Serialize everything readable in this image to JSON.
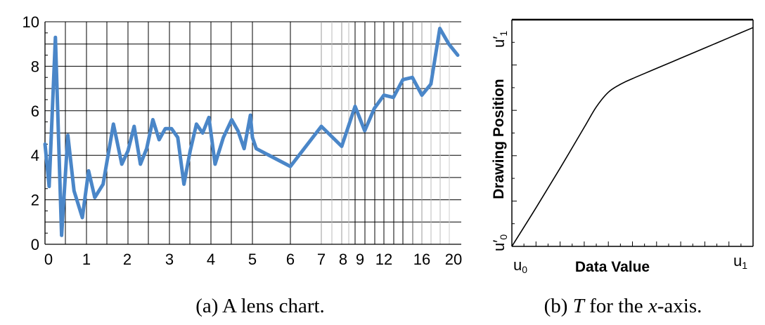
{
  "chart_data": [
    {
      "type": "line",
      "caption": "(a)  A lens chart.",
      "x_ticks": [
        "0",
        "1",
        "2",
        "3",
        "4",
        "5",
        "6",
        "7",
        "8",
        "9",
        "12",
        "16",
        "20"
      ],
      "y_ticks": [
        "0",
        "2",
        "4",
        "6",
        "8",
        "10"
      ],
      "ylim": [
        0,
        10
      ],
      "grid": true,
      "series_color": "#4a86c8",
      "series": [
        {
          "x": [
            0,
            0.1,
            0.25,
            0.4,
            0.55,
            0.7,
            0.9,
            1.05,
            1.2,
            1.4,
            1.65,
            1.85,
            2.0,
            2.15,
            2.3,
            2.45,
            2.6,
            2.75,
            2.9,
            3.05,
            3.2,
            3.35,
            3.5,
            3.65,
            3.8,
            3.95,
            4.1,
            4.3,
            4.5,
            4.65,
            4.8,
            4.95,
            5.0,
            5.1,
            6.0,
            7.0,
            8.0,
            9.0,
            10.0,
            11.0,
            12.0,
            13.0,
            14.0,
            15.0,
            16.0,
            17.0,
            18.0,
            19.0,
            20.0
          ],
          "y": [
            4.5,
            2.6,
            9.3,
            0.4,
            4.9,
            2.4,
            1.2,
            3.3,
            2.1,
            2.7,
            5.4,
            3.6,
            4.2,
            5.3,
            3.6,
            4.3,
            5.6,
            4.7,
            5.2,
            5.2,
            4.8,
            2.7,
            4.2,
            5.4,
            5.0,
            5.7,
            3.6,
            4.8,
            5.6,
            5.1,
            4.3,
            5.8,
            4.8,
            4.3,
            3.5,
            5.3,
            4.4,
            6.2,
            5.1,
            6.1,
            6.7,
            6.6,
            7.4,
            7.5,
            6.7,
            7.2,
            9.7,
            9.0,
            8.5
          ]
        }
      ]
    },
    {
      "type": "line",
      "caption_prefix": "(b)",
      "caption_T": "T",
      "caption_mid": "for the",
      "caption_x": "x",
      "caption_suffix": "-axis.",
      "xlabel": "Data Value",
      "ylabel": "Drawing Position",
      "x_start_label": "u",
      "x_start_sub": "0",
      "x_end_label": "u",
      "x_end_sub": "1",
      "y_start_label": "u′",
      "y_start_sub": "0",
      "y_end_label": "u′",
      "y_end_sub": "1",
      "curve": {
        "x": [
          0,
          0.1,
          0.2,
          0.3,
          0.35,
          0.4,
          0.45,
          0.5,
          0.6,
          0.7,
          0.8,
          0.9,
          1.0
        ],
        "y": [
          0,
          0.17,
          0.345,
          0.525,
          0.615,
          0.68,
          0.715,
          0.74,
          0.785,
          0.83,
          0.875,
          0.92,
          0.965
        ]
      }
    }
  ]
}
